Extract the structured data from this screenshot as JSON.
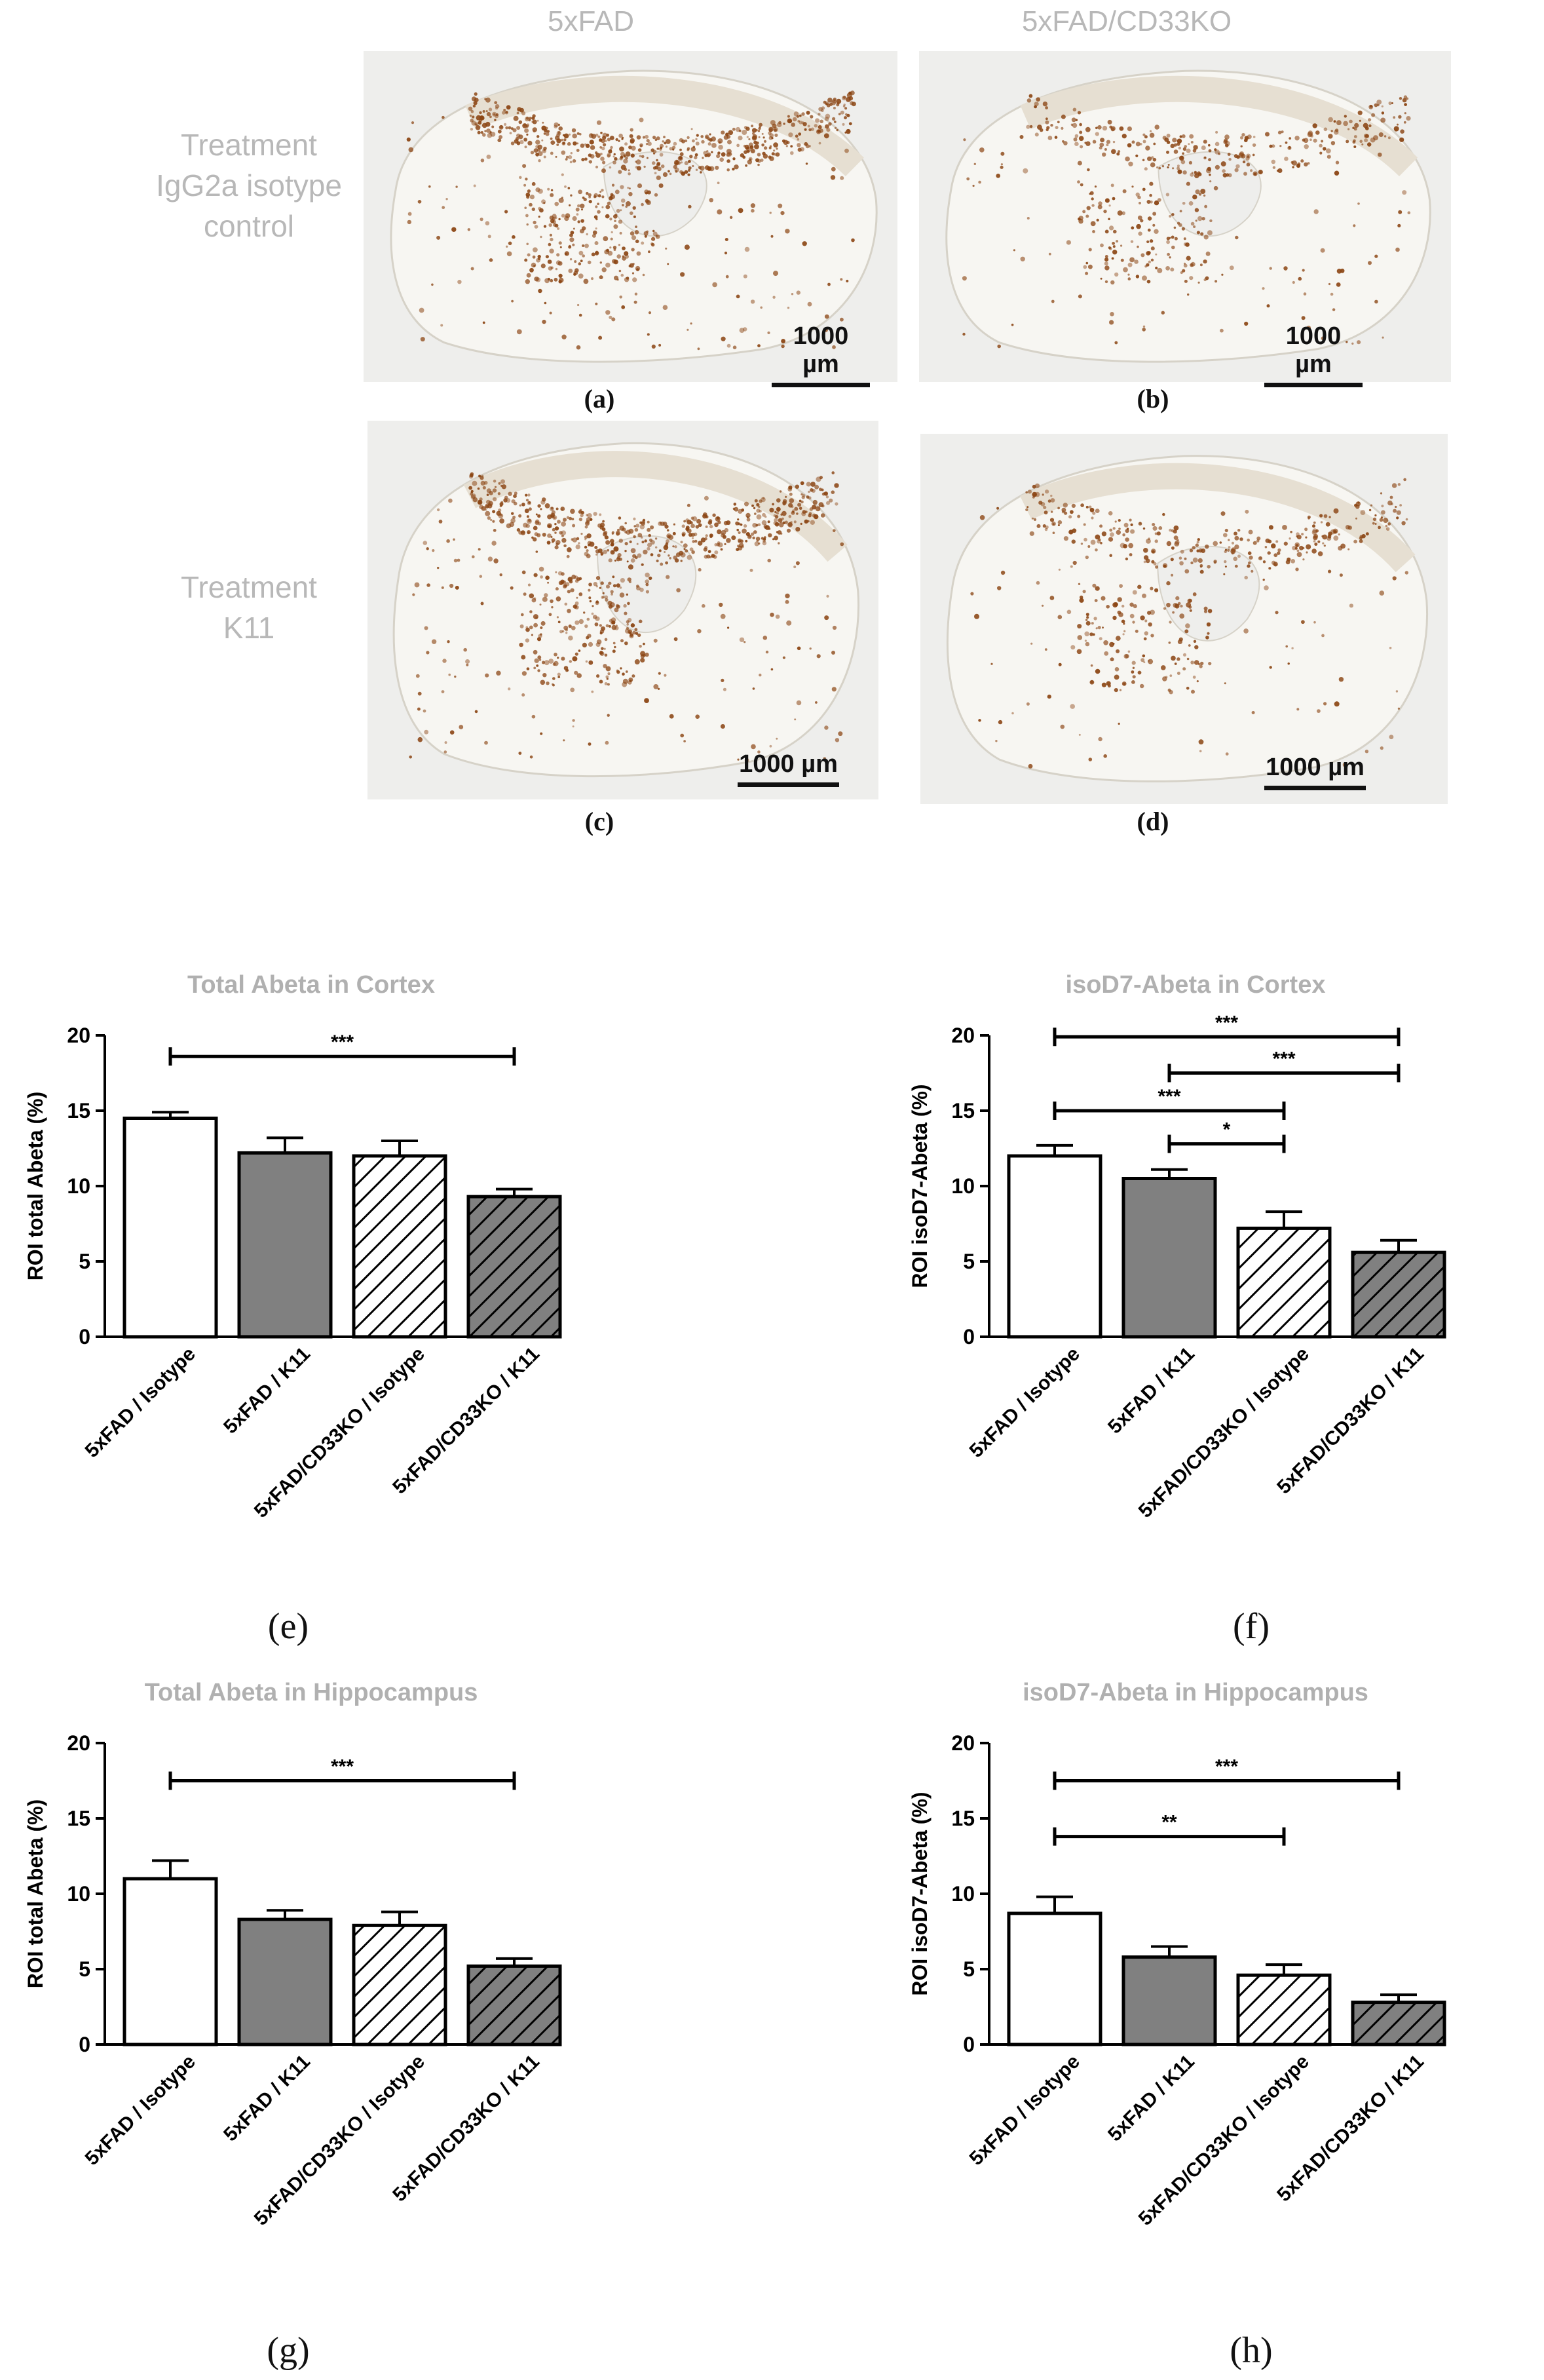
{
  "micrographs": {
    "column_headers": [
      "5xFAD",
      "5xFAD/CD33KO"
    ],
    "row_headers": [
      "Treatment\nIgG2a isotype\ncontrol",
      "Treatment\nK11"
    ],
    "scale_bar": "1000 µm",
    "panels": [
      {
        "label": "(a)",
        "stain_density": "high"
      },
      {
        "label": "(b)",
        "stain_density": "medium"
      },
      {
        "label": "(c)",
        "stain_density": "high"
      },
      {
        "label": "(d)",
        "stain_density": "medium"
      }
    ]
  },
  "colors": {
    "header_gray": "#b8b8b8",
    "stain_brown": "#8b4513",
    "tissue_bg": "#eeeeec",
    "bar_dark": "#808080",
    "bar_white": "#ffffff",
    "axis": "#000000"
  },
  "chart_data": [
    {
      "label": "(e)",
      "type": "bar",
      "title": "Total Abeta in Cortex",
      "ylabel": "ROI total Abeta (%)",
      "categories": [
        "5xFAD / Isotype",
        "5xFAD / K11",
        "5xFAD/CD33KO / Isotype",
        "5xFAD/CD33KO / K11"
      ],
      "values": [
        14.5,
        12.2,
        12.0,
        9.3
      ],
      "errors": [
        0.4,
        1.0,
        1.0,
        0.5
      ],
      "fills": [
        "white",
        "gray",
        "hatch-white",
        "hatch-gray"
      ],
      "ylim": [
        0,
        20
      ],
      "yticks": [
        0,
        5,
        10,
        15,
        20
      ],
      "significance": [
        {
          "from": 0,
          "to": 3,
          "y": 18.6,
          "label": "***"
        }
      ]
    },
    {
      "label": "(f)",
      "type": "bar",
      "title": "isoD7-Abeta in Cortex",
      "ylabel": "ROI isoD7-Abeta (%)",
      "categories": [
        "5xFAD / Isotype",
        "5xFAD / K11",
        "5xFAD/CD33KO / Isotype",
        "5xFAD/CD33KO / K11"
      ],
      "values": [
        12.0,
        10.5,
        7.2,
        5.6
      ],
      "errors": [
        0.7,
        0.6,
        1.1,
        0.8
      ],
      "fills": [
        "white",
        "gray",
        "hatch-white",
        "hatch-gray"
      ],
      "ylim": [
        0,
        20
      ],
      "yticks": [
        0,
        5,
        10,
        15,
        20
      ],
      "significance": [
        {
          "from": 0,
          "to": 3,
          "y": 19.9,
          "label": "***"
        },
        {
          "from": 1,
          "to": 3,
          "y": 17.5,
          "label": "***"
        },
        {
          "from": 0,
          "to": 2,
          "y": 15.0,
          "label": "***"
        },
        {
          "from": 1,
          "to": 2,
          "y": 12.8,
          "label": "*"
        }
      ]
    },
    {
      "label": "(g)",
      "type": "bar",
      "title": "Total Abeta in Hippocampus",
      "ylabel": "ROI total Abeta (%)",
      "categories": [
        "5xFAD / Isotype",
        "5xFAD / K11",
        "5xFAD/CD33KO / Isotype",
        "5xFAD/CD33KO / K11"
      ],
      "values": [
        11.0,
        8.3,
        7.9,
        5.2
      ],
      "errors": [
        1.2,
        0.6,
        0.9,
        0.5
      ],
      "fills": [
        "white",
        "gray",
        "hatch-white",
        "hatch-gray"
      ],
      "ylim": [
        0,
        20
      ],
      "yticks": [
        0,
        5,
        10,
        15,
        20
      ],
      "significance": [
        {
          "from": 0,
          "to": 3,
          "y": 17.5,
          "label": "***"
        }
      ]
    },
    {
      "label": "(h)",
      "type": "bar",
      "title": "isoD7-Abeta in Hippocampus",
      "ylabel": "ROI isoD7-Abeta (%)",
      "categories": [
        "5xFAD / Isotype",
        "5xFAD / K11",
        "5xFAD/CD33KO / Isotype",
        "5xFAD/CD33KO / K11"
      ],
      "values": [
        8.7,
        5.8,
        4.6,
        2.8
      ],
      "errors": [
        1.1,
        0.7,
        0.7,
        0.5
      ],
      "fills": [
        "white",
        "gray",
        "hatch-white",
        "hatch-gray"
      ],
      "ylim": [
        0,
        20
      ],
      "yticks": [
        0,
        5,
        10,
        15,
        20
      ],
      "significance": [
        {
          "from": 0,
          "to": 3,
          "y": 17.5,
          "label": "***"
        },
        {
          "from": 0,
          "to": 2,
          "y": 13.8,
          "label": "**"
        }
      ]
    }
  ]
}
